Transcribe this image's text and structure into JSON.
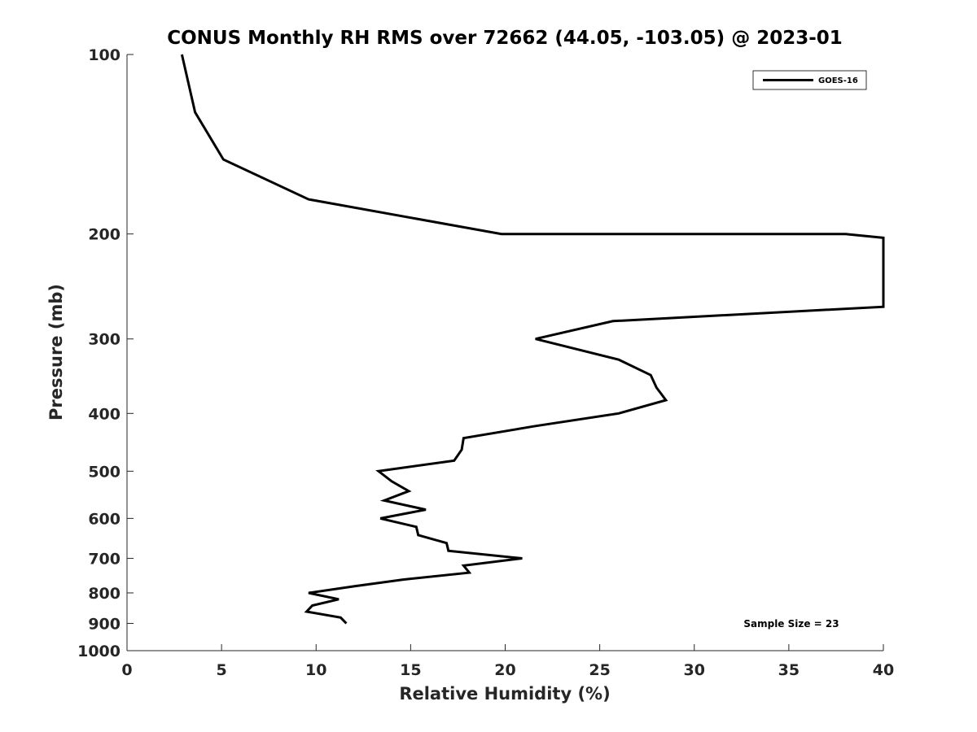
{
  "chart_data": {
    "type": "line",
    "title": "CONUS Monthly RH RMS over 72662 (44.05, -103.05) @ 2023-01",
    "xlabel": "Relative Humidity (%)",
    "ylabel": "Pressure (mb)",
    "xlim": [
      0,
      40
    ],
    "ylim": [
      1000,
      100
    ],
    "y_scale": "log",
    "y_direction": "reversed",
    "grid": false,
    "legend_position": "top-right",
    "x_ticks": [
      0,
      5,
      10,
      15,
      20,
      25,
      30,
      35,
      40
    ],
    "x_tick_labels": [
      "0",
      "5",
      "10",
      "15",
      "20",
      "25",
      "30",
      "35",
      "40"
    ],
    "y_ticks": [
      100,
      200,
      300,
      400,
      500,
      600,
      700,
      800,
      900,
      1000
    ],
    "y_tick_labels": [
      "100",
      "200",
      "300",
      "400",
      "500",
      "600",
      "700",
      "800",
      "900",
      "1000"
    ],
    "series": [
      {
        "name": "GOES-16",
        "color": "#000000",
        "points": [
          {
            "x": 2.9,
            "p": 100
          },
          {
            "x": 3.6,
            "p": 125
          },
          {
            "x": 5.1,
            "p": 150
          },
          {
            "x": 9.6,
            "p": 175
          },
          {
            "x": 19.8,
            "p": 200
          },
          {
            "x": 38.0,
            "p": 200
          },
          {
            "x": 40.0,
            "p": 203
          },
          {
            "x": 40.0,
            "p": 265
          },
          {
            "x": 25.7,
            "p": 280
          },
          {
            "x": 21.6,
            "p": 300
          },
          {
            "x": 26.0,
            "p": 325
          },
          {
            "x": 27.7,
            "p": 345
          },
          {
            "x": 28.0,
            "p": 362
          },
          {
            "x": 28.5,
            "p": 380
          },
          {
            "x": 26.0,
            "p": 400
          },
          {
            "x": 21.6,
            "p": 420
          },
          {
            "x": 17.8,
            "p": 440
          },
          {
            "x": 17.7,
            "p": 460
          },
          {
            "x": 17.3,
            "p": 480
          },
          {
            "x": 13.3,
            "p": 500
          },
          {
            "x": 14.0,
            "p": 520
          },
          {
            "x": 14.9,
            "p": 540
          },
          {
            "x": 13.6,
            "p": 560
          },
          {
            "x": 15.8,
            "p": 580
          },
          {
            "x": 13.4,
            "p": 600
          },
          {
            "x": 15.3,
            "p": 620
          },
          {
            "x": 15.4,
            "p": 640
          },
          {
            "x": 16.9,
            "p": 660
          },
          {
            "x": 17.0,
            "p": 680
          },
          {
            "x": 20.9,
            "p": 700
          },
          {
            "x": 17.8,
            "p": 720
          },
          {
            "x": 18.1,
            "p": 740
          },
          {
            "x": 14.6,
            "p": 760
          },
          {
            "x": 12.0,
            "p": 780
          },
          {
            "x": 9.6,
            "p": 800
          },
          {
            "x": 11.2,
            "p": 820
          },
          {
            "x": 9.8,
            "p": 840
          },
          {
            "x": 9.5,
            "p": 860
          },
          {
            "x": 11.3,
            "p": 880
          },
          {
            "x": 11.6,
            "p": 900
          }
        ]
      }
    ],
    "annotations": [
      {
        "text": "Sample Size = 23",
        "position": "bottom-right"
      }
    ]
  }
}
